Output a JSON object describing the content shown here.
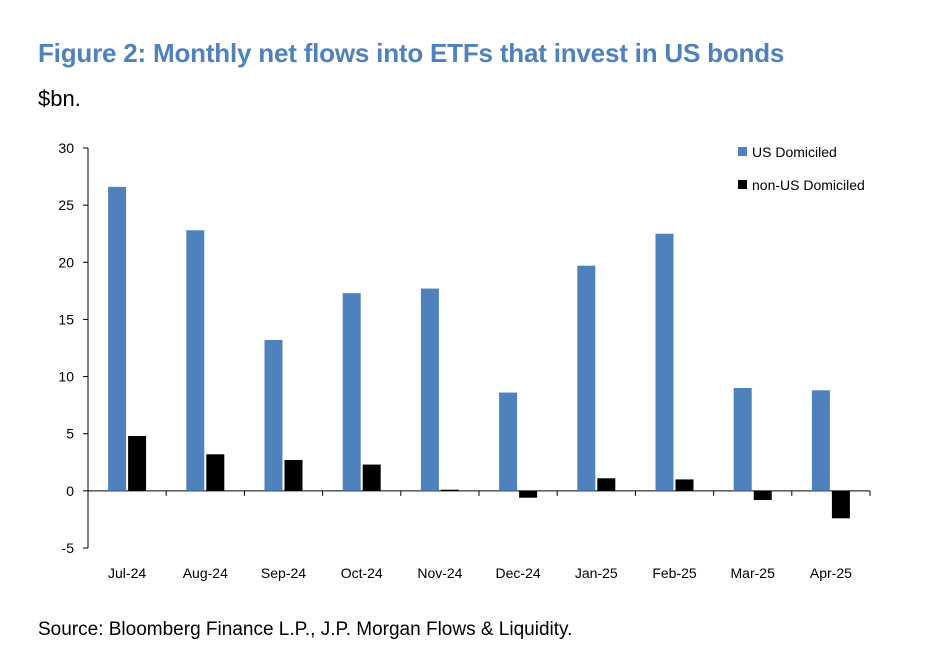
{
  "title": "Figure 2: Monthly net flows into ETFs that invest in US bonds",
  "subtitle": "$bn.",
  "source": "Source: Bloomberg Finance L.P., J.P. Morgan Flows & Liquidity.",
  "colors": {
    "title": "#4f81bd",
    "us": "#4f81bd",
    "non_us": "#000000"
  },
  "chart_data": {
    "type": "bar",
    "categories": [
      "Jul-24",
      "Aug-24",
      "Sep-24",
      "Oct-24",
      "Nov-24",
      "Dec-24",
      "Jan-25",
      "Feb-25",
      "Mar-25",
      "Apr-25"
    ],
    "series": [
      {
        "name": "US Domiciled",
        "values": [
          26.6,
          22.8,
          13.2,
          17.3,
          17.7,
          8.6,
          19.7,
          22.5,
          9.0,
          8.8
        ]
      },
      {
        "name": "non-US Domiciled",
        "values": [
          4.8,
          3.2,
          2.7,
          2.3,
          0.1,
          -0.6,
          1.1,
          1.0,
          -0.8,
          -2.4
        ]
      }
    ],
    "yticks": [
      "30",
      "25",
      "20",
      "15",
      "10",
      "5",
      "0",
      "-5"
    ],
    "ylim": [
      -5,
      30
    ],
    "legend_position": "top-right",
    "grid": false
  }
}
